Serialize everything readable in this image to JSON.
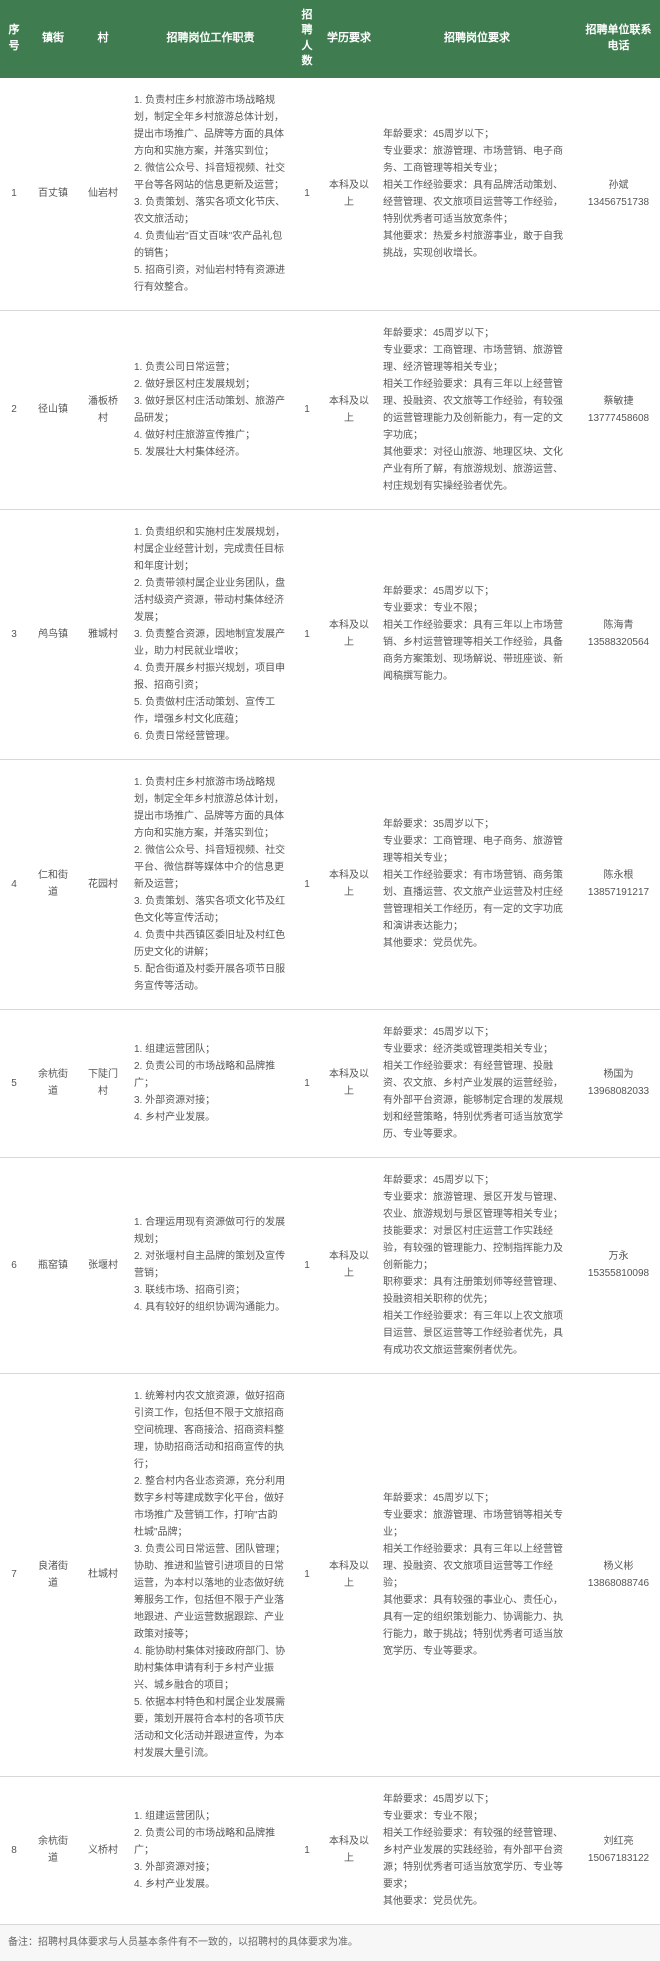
{
  "columns": [
    "序号",
    "镇街",
    "村",
    "招聘岗位工作职责",
    "招聘人数",
    "学历要求",
    "招聘岗位要求",
    "招聘单位联系电话"
  ],
  "rows": [
    {
      "seq": "1",
      "town": "百丈镇",
      "village": "仙岩村",
      "duty": "1. 负责村庄乡村旅游市场战略规划，制定全年乡村旅游总体计划，提出市场推广、品牌等方面的具体方向和实施方案，并落实到位；\n2. 微信公众号、抖音短视频、社交平台等各网站的信息更新及运营；\n3. 负责策划、落实各项文化节庆、农文旅活动；\n4. 负责仙岩\"百丈百味\"农产品礼包的销售；\n5. 招商引资，对仙岩村特有资源进行有效整合。",
      "num": "1",
      "edu": "本科及以上",
      "req": "年龄要求：45周岁以下；\n专业要求：旅游管理、市场营销、电子商务、工商管理等相关专业；\n相关工作经验要求：具有品牌活动策划、经营管理、农文旅项目运营等工作经验，特别优秀者可适当放宽条件；\n其他要求：热爱乡村旅游事业，敢于自我挑战，实现创收增长。",
      "contact": "孙斌\n13456751738"
    },
    {
      "seq": "2",
      "town": "径山镇",
      "village": "潘板桥村",
      "duty": "1. 负责公司日常运营；\n2. 做好景区村庄发展规划；\n3. 做好景区村庄活动策划、旅游产品研发；\n4. 做好村庄旅游宣传推广；\n5. 发展壮大村集体经济。",
      "num": "1",
      "edu": "本科及以上",
      "req": "年龄要求：45周岁以下；\n专业要求：工商管理、市场营销、旅游管理、经济管理等相关专业；\n相关工作经验要求：具有三年以上经营管理、投融资、农文旅等工作经验，有较强的运营管理能力及创新能力，有一定的文字功底；\n其他要求：对径山旅游、地理区块、文化产业有所了解，有旅游规划、旅游运营、村庄规划有实操经验者优先。",
      "contact": "蔡敏捷\n13777458608"
    },
    {
      "seq": "3",
      "town": "鸬鸟镇",
      "village": "雅城村",
      "duty": "1. 负责组织和实施村庄发展规划，村属企业经营计划，完成责任目标和年度计划；\n2. 负责带领村属企业业务团队，盘活村级资产资源，带动村集体经济发展；\n3. 负责整合资源，因地制宜发展产业，助力村民就业增收；\n4. 负责开展乡村振兴规划，项目申报、招商引资；\n5. 负责做村庄活动策划、宣传工作，增强乡村文化底蕴；\n6. 负责日常经营管理。",
      "num": "1",
      "edu": "本科及以上",
      "req": "年龄要求：45周岁以下；\n专业要求：专业不限；\n相关工作经验要求：具有三年以上市场营销、乡村运营管理等相关工作经验，具备商务方案策划、现场解说、带班座谈、新闻稿撰写能力。",
      "contact": "陈海青\n13588320564"
    },
    {
      "seq": "4",
      "town": "仁和街道",
      "village": "花园村",
      "duty": "1. 负责村庄乡村旅游市场战略规划，制定全年乡村旅游总体计划，提出市场推广、品牌等方面的具体方向和实施方案，并落实到位；\n2. 微信公众号、抖音短视频、社交平台、微信群等媒体中介的信息更新及运营；\n3. 负责策划、落实各项文化节及红色文化等宣传活动；\n4. 负责中共西镇区委旧址及村红色历史文化的讲解；\n5. 配合街道及村委开展各项节日服务宣传等活动。",
      "num": "1",
      "edu": "本科及以上",
      "req": "年龄要求：35周岁以下；\n专业要求：工商管理、电子商务、旅游管理等相关专业；\n相关工作经验要求：有市场营销、商务策划、直播运营、农文旅产业运营及村庄经营管理相关工作经历，有一定的文字功底和演讲表达能力；\n其他要求：党员优先。",
      "contact": "陈永根\n13857191217"
    },
    {
      "seq": "5",
      "town": "余杭街道",
      "village": "下陡门村",
      "duty": "1. 组建运营团队；\n2. 负责公司的市场战略和品牌推广；\n3. 外部资源对接；\n4. 乡村产业发展。",
      "num": "1",
      "edu": "本科及以上",
      "req": "年龄要求：45周岁以下；\n专业要求：经济类或管理类相关专业；\n相关工作经验要求：有经营管理、投融资、农文旅、乡村产业发展的运营经验，有外部平台资源，能够制定合理的发展规划和经营策略，特别优秀者可适当放宽学历、专业等要求。",
      "contact": "杨国为\n13968082033"
    },
    {
      "seq": "6",
      "town": "瓶窑镇",
      "village": "张堰村",
      "duty": "1. 合理运用现有资源做可行的发展规划；\n2. 对张堰村自主品牌的策划及宣传营销；\n3. 联线市场、招商引资；\n4. 具有较好的组织协调沟通能力。",
      "num": "1",
      "edu": "本科及以上",
      "req": "年龄要求：45周岁以下；\n专业要求：旅游管理、景区开发与管理、农业、旅游规划与景区管理等相关专业；\n技能要求：对景区村庄运营工作实践经验，有较强的管理能力、控制指挥能力及创新能力；\n职称要求：具有注册策划师等经营管理、投融资相关职称的优先；\n相关工作经验要求：有三年以上农文旅项目运营、景区运营等工作经验者优先，具有成功农文旅运营案例者优先。",
      "contact": "万永\n15355810098"
    },
    {
      "seq": "7",
      "town": "良渚街道",
      "village": "杜城村",
      "duty": "1. 统筹村内农文旅资源，做好招商引资工作，包括但不限于文旅招商空间梳理、客商接洽、招商资料整理，协助招商活动和招商宣传的执行；\n2. 整合村内各业态资源，充分利用数字乡村等建成数字化平台，做好市场推广及营销工作，打响\"古韵杜城\"品牌；\n3. 负责公司日常运营、团队管理；协助、推进和监管引进项目的日常运营，为本村以落地的业态做好统筹服务工作，包括但不限于产业落地跟进、产业运营数据跟踪、产业政策对接等；\n4. 能协助村集体对接政府部门、协助村集体申请有利于乡村产业振兴、城乡融合的项目；\n5. 依据本村特色和村属企业发展需要，策划开展符合本村的各项节庆活动和文化活动并跟进宣传，为本村发展大量引流。",
      "num": "1",
      "edu": "本科及以上",
      "req": "年龄要求：45周岁以下；\n专业要求：旅游管理、市场营销等相关专业；\n相关工作经验要求：具有三年以上经营管理、投融资、农文旅项目运营等工作经验；\n其他要求：具有较强的事业心、责任心，具有一定的组织策划能力、协调能力、执行能力，敢于挑战；特别优秀者可适当放宽学历、专业等要求。",
      "contact": "杨义彬\n13868088746"
    },
    {
      "seq": "8",
      "town": "余杭街道",
      "village": "义桥村",
      "duty": "1. 组建运营团队；\n2. 负责公司的市场战略和品牌推广；\n3. 外部资源对接；\n4. 乡村产业发展。",
      "num": "1",
      "edu": "本科及以上",
      "req": "年龄要求：45周岁以下；\n专业要求：专业不限；\n相关工作经验要求：有较强的经营管理、乡村产业发展的实践经验，有外部平台资源；特别优秀者可适当放宽学历、专业等要求；\n其他要求：党员优先。",
      "contact": "刘红亮\n15067183122"
    }
  ],
  "footnote": "备注：招聘村具体要求与人员基本条件有不一致的，以招聘村的具体要求为准。"
}
